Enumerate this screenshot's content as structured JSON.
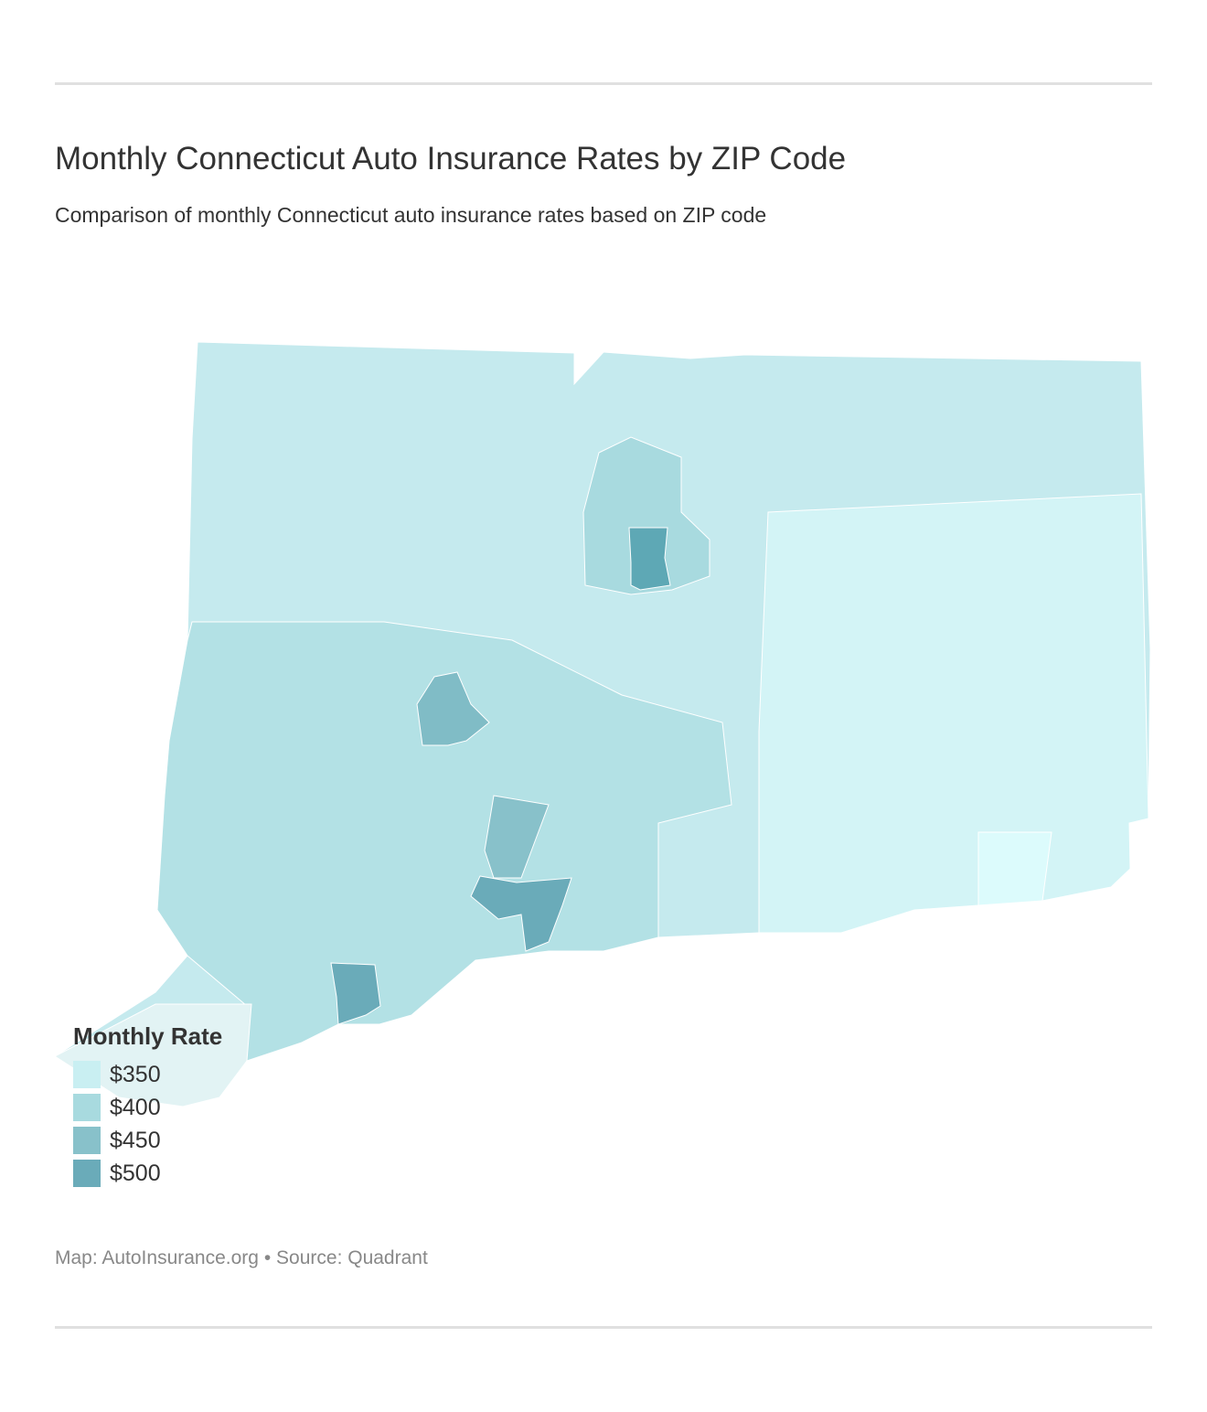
{
  "title": "Monthly Connecticut Auto Insurance Rates by ZIP Code",
  "subtitle": "Comparison of monthly Connecticut auto insurance rates based on ZIP code",
  "legend": {
    "title": "Monthly Rate",
    "items": [
      {
        "label": "$350",
        "color": "#c9eff2"
      },
      {
        "label": "$400",
        "color": "#a8dadf"
      },
      {
        "label": "$450",
        "color": "#88c1ca"
      },
      {
        "label": "$500",
        "color": "#6aabb9"
      }
    ]
  },
  "footer": {
    "map_credit": "Map: AutoInsurance.org",
    "separator": "•",
    "source": "Source: Quadrant"
  }
}
